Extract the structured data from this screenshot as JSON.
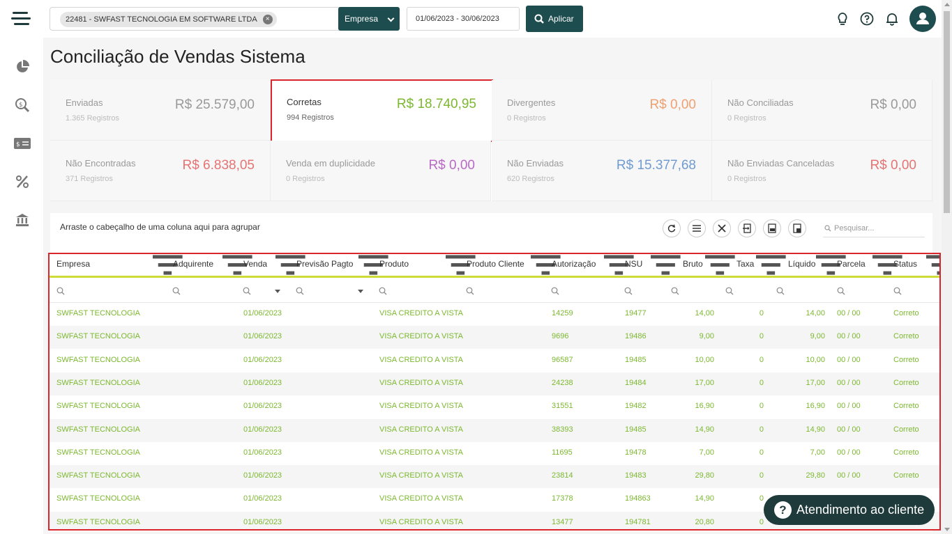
{
  "topbar": {
    "company_chip": "22481 - SWFAST TECNOLOGIA EM SOFTWARE LTDA",
    "chip_remove": "×",
    "clear_all": "×",
    "empresa_label": "Empresa",
    "date_range": "01/06/2023 - 30/06/2023",
    "apply_label": "Aplicar"
  },
  "page": {
    "title": "Conciliação de Vendas Sistema"
  },
  "cards": [
    {
      "label": "Enviadas",
      "sub": "1.365 Registros",
      "value": "R$ 25.579,00",
      "color": "#999999"
    },
    {
      "label": "Corretas",
      "sub": "994 Registros",
      "value": "R$ 18.740,95",
      "color": "#7cb82f"
    },
    {
      "label": "Divergentes",
      "sub": "0 Registros",
      "value": "R$ 0,00",
      "color": "#f0a070"
    },
    {
      "label": "Não Conciliadas",
      "sub": "0 Registros",
      "value": "R$ 0,00",
      "color": "#999999"
    },
    {
      "label": "Não Encontradas",
      "sub": "371 Registros",
      "value": "R$ 6.838,05",
      "color": "#e57373"
    },
    {
      "label": "Venda em duplicidade",
      "sub": "0 Registros",
      "value": "R$ 0,00",
      "color": "#ba68c8"
    },
    {
      "label": "Não Enviadas",
      "sub": "620 Registros",
      "value": "R$ 15.377,68",
      "color": "#6f9bd1"
    },
    {
      "label": "Não Enviadas Canceladas",
      "sub": "0 Registros",
      "value": "R$ 0,00",
      "color": "#e57373"
    }
  ],
  "grid": {
    "group_hint": "Arraste o cabeçalho de uma coluna aqui para agrupar",
    "search_placeholder": "Pesquisar...",
    "columns": [
      "Empresa",
      "Adquirente",
      "Venda",
      "Previsão Pagto",
      "Produto",
      "Produto Cliente",
      "Autorização",
      "NSU",
      "Bruto",
      "Taxa",
      "Líquido",
      "Parcela",
      "Status"
    ],
    "rows": [
      [
        "SWFAST TECNOLOGIA",
        "",
        "01/06/2023",
        "",
        "VISA CREDITO A VISTA",
        "",
        "14259",
        "19477",
        "14,00",
        "0",
        "14,00",
        "00 / 00",
        "Correto"
      ],
      [
        "SWFAST TECNOLOGIA",
        "",
        "01/06/2023",
        "",
        "VISA CREDITO A VISTA",
        "",
        "9696",
        "19486",
        "9,00",
        "0",
        "9,00",
        "00 / 00",
        "Correto"
      ],
      [
        "SWFAST TECNOLOGIA",
        "",
        "01/06/2023",
        "",
        "VISA CREDITO A VISTA",
        "",
        "96587",
        "19485",
        "10,00",
        "0",
        "10,00",
        "00 / 00",
        "Correto"
      ],
      [
        "SWFAST TECNOLOGIA",
        "",
        "01/06/2023",
        "",
        "VISA CREDITO A VISTA",
        "",
        "24238",
        "19484",
        "17,00",
        "0",
        "17,00",
        "00 / 00",
        "Correto"
      ],
      [
        "SWFAST TECNOLOGIA",
        "",
        "01/06/2023",
        "",
        "VISA CREDITO A VISTA",
        "",
        "31551",
        "19482",
        "16,90",
        "0",
        "16,90",
        "00 / 00",
        "Correto"
      ],
      [
        "SWFAST TECNOLOGIA",
        "",
        "01/06/2023",
        "",
        "VISA CREDITO A VISTA",
        "",
        "38393",
        "19485",
        "14,90",
        "0",
        "14,90",
        "00 / 00",
        "Correto"
      ],
      [
        "SWFAST TECNOLOGIA",
        "",
        "01/06/2023",
        "",
        "VISA CREDITO A VISTA",
        "",
        "11695",
        "19478",
        "7,00",
        "0",
        "7,00",
        "00 / 00",
        "Correto"
      ],
      [
        "SWFAST TECNOLOGIA",
        "",
        "01/06/2023",
        "",
        "VISA CREDITO A VISTA",
        "",
        "23814",
        "19483",
        "29,80",
        "0",
        "29,80",
        "00 / 00",
        "Correto"
      ],
      [
        "SWFAST TECNOLOGIA",
        "",
        "01/06/2023",
        "",
        "VISA CREDITO A VISTA",
        "",
        "17378",
        "194863",
        "14,90",
        "0",
        "",
        "",
        ""
      ],
      [
        "SWFAST TECNOLOGIA",
        "",
        "01/06/2023",
        "",
        "VISA CREDITO A VISTA",
        "",
        "13477",
        "194781",
        "20,80",
        "0",
        "",
        "",
        ""
      ]
    ]
  },
  "chat": {
    "label": "Atendimento ao cliente",
    "glyph": "?"
  },
  "colors": {
    "brand": "#1e4d4f",
    "accent": "#cddc39",
    "correct": "#7cb82f",
    "highlight": "#d9262c"
  }
}
